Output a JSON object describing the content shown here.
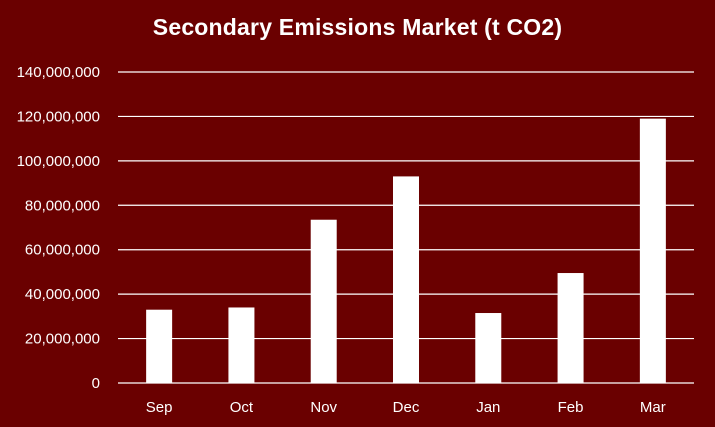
{
  "chart_data": {
    "type": "bar",
    "title": "Secondary Emissions Market (t CO2)",
    "xlabel": "",
    "ylabel": "",
    "categories": [
      "Sep",
      "Oct",
      "Nov",
      "Dec",
      "Jan",
      "Feb",
      "Mar"
    ],
    "values": [
      33000000,
      34000000,
      73500000,
      93000000,
      31500000,
      49500000,
      119000000
    ],
    "ylim": [
      0,
      140000000
    ],
    "yticks": [
      0,
      20000000,
      40000000,
      60000000,
      80000000,
      100000000,
      120000000,
      140000000
    ],
    "ytick_labels": [
      "0",
      "20,000,000",
      "40,000,000",
      "60,000,000",
      "80,000,000",
      "100,000,000",
      "120,000,000",
      "140,000,000"
    ],
    "grid": true,
    "legend": "none",
    "colors": {
      "background": "#6a0000",
      "bars": "#ffffff",
      "gridlines": "#ffffff",
      "text": "#ffffff"
    }
  }
}
